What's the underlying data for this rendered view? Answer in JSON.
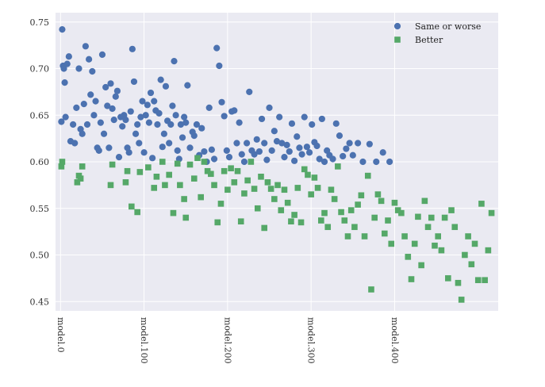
{
  "chart_data": {
    "type": "scatter",
    "title": "",
    "xlabel": "",
    "ylabel": "",
    "ylim": [
      0.44,
      0.76
    ],
    "yticks": [
      0.45,
      0.5,
      0.55,
      0.6,
      0.65,
      0.7,
      0.75
    ],
    "ytick_labels": [
      "0.45",
      "0.50",
      "0.55",
      "0.60",
      "0.65",
      "0.70",
      "0.75"
    ],
    "xlim": [
      -6,
      524
    ],
    "xticks": [
      0,
      100,
      200,
      300,
      400
    ],
    "xtick_labels": [
      "model.0",
      "model.100",
      "model.200",
      "model.300",
      "model.400"
    ],
    "grid": true,
    "legend_position": "top-right",
    "colors": {
      "same_or_worse": "#4c72b0",
      "better": "#55a868",
      "plot_bg": "#eaeaf2",
      "grid": "#ffffff"
    },
    "series": [
      {
        "name": "Same or worse",
        "marker": "circle",
        "x": [
          1,
          2,
          3,
          4,
          5,
          6,
          8,
          10,
          12,
          15,
          17,
          19,
          22,
          24,
          26,
          28,
          30,
          32,
          34,
          36,
          38,
          40,
          42,
          44,
          46,
          48,
          50,
          52,
          54,
          56,
          58,
          60,
          62,
          64,
          66,
          68,
          70,
          72,
          74,
          76,
          78,
          80,
          82,
          84,
          86,
          88,
          90,
          92,
          94,
          96,
          98,
          100,
          102,
          104,
          106,
          108,
          110,
          112,
          114,
          116,
          118,
          120,
          122,
          124,
          126,
          128,
          130,
          132,
          134,
          136,
          138,
          140,
          142,
          144,
          146,
          148,
          150,
          152,
          155,
          158,
          160,
          163,
          166,
          169,
          172,
          175,
          178,
          181,
          184,
          187,
          190,
          193,
          196,
          199,
          202,
          205,
          208,
          211,
          214,
          217,
          220,
          223,
          226,
          229,
          232,
          235,
          238,
          241,
          244,
          247,
          250,
          253,
          256,
          259,
          262,
          265,
          268,
          271,
          274,
          277,
          280,
          283,
          286,
          289,
          292,
          295,
          298,
          301,
          304,
          307,
          310,
          313,
          316,
          319,
          322,
          326,
          330,
          334,
          338,
          342,
          346,
          350,
          356,
          362,
          370,
          378,
          386,
          394
        ],
        "y": [
          0.643,
          0.742,
          0.703,
          0.7,
          0.685,
          0.648,
          0.705,
          0.713,
          0.622,
          0.64,
          0.62,
          0.658,
          0.7,
          0.635,
          0.63,
          0.662,
          0.724,
          0.64,
          0.71,
          0.672,
          0.697,
          0.65,
          0.665,
          0.615,
          0.612,
          0.642,
          0.715,
          0.63,
          0.68,
          0.66,
          0.615,
          0.684,
          0.657,
          0.645,
          0.67,
          0.676,
          0.605,
          0.648,
          0.638,
          0.65,
          0.645,
          0.615,
          0.61,
          0.654,
          0.721,
          0.686,
          0.63,
          0.64,
          0.62,
          0.648,
          0.665,
          0.61,
          0.65,
          0.661,
          0.642,
          0.674,
          0.604,
          0.665,
          0.655,
          0.64,
          0.652,
          0.688,
          0.616,
          0.63,
          0.681,
          0.644,
          0.62,
          0.64,
          0.66,
          0.708,
          0.65,
          0.612,
          0.603,
          0.64,
          0.626,
          0.648,
          0.642,
          0.682,
          0.615,
          0.632,
          0.628,
          0.64,
          0.607,
          0.636,
          0.611,
          0.6,
          0.658,
          0.613,
          0.603,
          0.722,
          0.703,
          0.664,
          0.649,
          0.612,
          0.605,
          0.654,
          0.655,
          0.62,
          0.642,
          0.608,
          0.6,
          0.62,
          0.675,
          0.612,
          0.608,
          0.624,
          0.611,
          0.646,
          0.62,
          0.602,
          0.658,
          0.612,
          0.633,
          0.622,
          0.648,
          0.62,
          0.605,
          0.618,
          0.611,
          0.641,
          0.601,
          0.627,
          0.615,
          0.608,
          0.648,
          0.616,
          0.61,
          0.64,
          0.621,
          0.617,
          0.603,
          0.646,
          0.6,
          0.612,
          0.607,
          0.603,
          0.641,
          0.628,
          0.606,
          0.614,
          0.62,
          0.607,
          0.62,
          0.6,
          0.619,
          0.6,
          0.61,
          0.6
        ]
      },
      {
        "name": "Better",
        "marker": "square",
        "x": [
          1,
          2,
          20,
          22,
          24,
          26,
          60,
          62,
          78,
          80,
          85,
          92,
          95,
          105,
          112,
          115,
          122,
          125,
          130,
          135,
          140,
          143,
          148,
          150,
          155,
          160,
          164,
          168,
          172,
          176,
          180,
          184,
          188,
          192,
          196,
          200,
          204,
          208,
          212,
          216,
          220,
          224,
          228,
          232,
          236,
          240,
          244,
          248,
          252,
          256,
          260,
          264,
          268,
          272,
          276,
          280,
          284,
          288,
          292,
          296,
          300,
          304,
          308,
          312,
          316,
          320,
          324,
          328,
          332,
          336,
          340,
          344,
          348,
          352,
          356,
          360,
          364,
          368,
          372,
          376,
          380,
          384,
          388,
          392,
          396,
          400,
          404,
          408,
          412,
          416,
          420,
          424,
          428,
          432,
          436,
          440,
          444,
          448,
          452,
          456,
          460,
          464,
          468,
          472,
          476,
          480,
          484,
          488,
          492,
          496,
          500,
          504,
          508,
          512,
          516
        ],
        "y": [
          0.595,
          0.6,
          0.578,
          0.585,
          0.582,
          0.595,
          0.575,
          0.597,
          0.578,
          0.59,
          0.552,
          0.546,
          0.589,
          0.594,
          0.572,
          0.584,
          0.6,
          0.575,
          0.586,
          0.545,
          0.598,
          0.575,
          0.56,
          0.54,
          0.597,
          0.582,
          0.604,
          0.562,
          0.6,
          0.59,
          0.587,
          0.575,
          0.535,
          0.555,
          0.59,
          0.57,
          0.593,
          0.578,
          0.59,
          0.536,
          0.566,
          0.58,
          0.6,
          0.571,
          0.55,
          0.584,
          0.529,
          0.578,
          0.571,
          0.56,
          0.575,
          0.548,
          0.57,
          0.556,
          0.536,
          0.543,
          0.572,
          0.535,
          0.592,
          0.586,
          0.565,
          0.583,
          0.572,
          0.537,
          0.545,
          0.53,
          0.57,
          0.56,
          0.595,
          0.546,
          0.537,
          0.52,
          0.548,
          0.53,
          0.554,
          0.564,
          0.52,
          0.585,
          0.463,
          0.54,
          0.565,
          0.558,
          0.523,
          0.537,
          0.512,
          0.556,
          0.548,
          0.545,
          0.52,
          0.498,
          0.474,
          0.512,
          0.541,
          0.489,
          0.558,
          0.53,
          0.54,
          0.51,
          0.52,
          0.505,
          0.54,
          0.475,
          0.548,
          0.53,
          0.47,
          0.452,
          0.5,
          0.52,
          0.49,
          0.512,
          0.473,
          0.555,
          0.473,
          0.505,
          0.545
        ]
      }
    ]
  }
}
